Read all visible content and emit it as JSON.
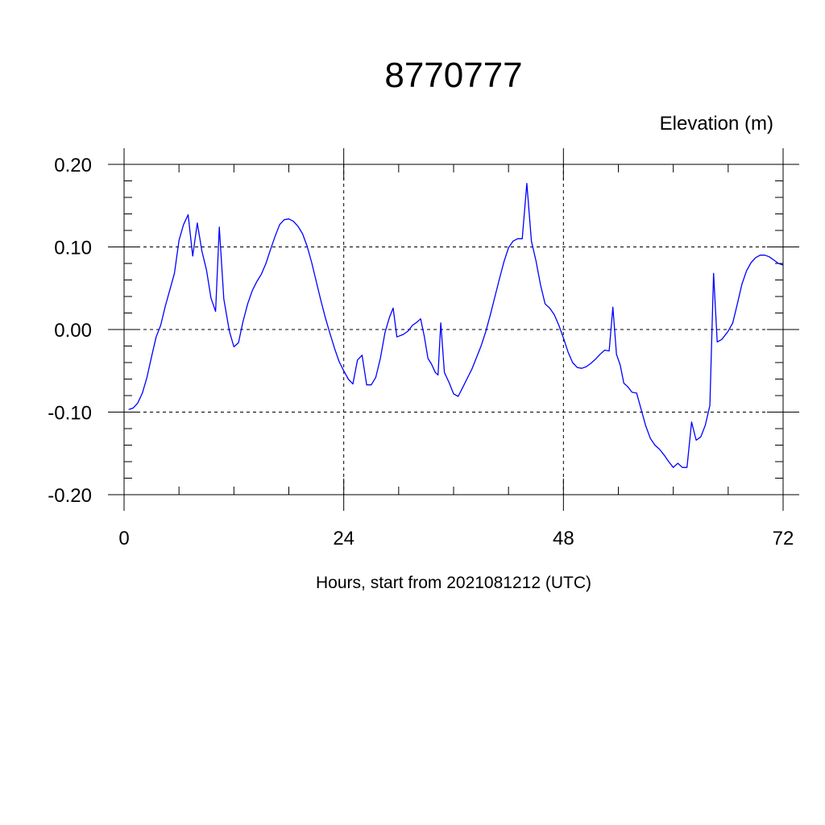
{
  "chart_data": {
    "type": "line",
    "title": "8770777",
    "units_label": "Elevation (m)",
    "xlabel": "Hours, start from 2021081212 (UTC)",
    "ylabel": "",
    "xlim": [
      0,
      72
    ],
    "ylim": [
      -0.2,
      0.2
    ],
    "xticks": [
      0,
      24,
      48,
      72
    ],
    "xtick_labels": [
      "0",
      "24",
      "48",
      "72"
    ],
    "yticks": [
      0.2,
      0.1,
      0.0,
      -0.1,
      -0.2
    ],
    "ytick_labels": [
      "0.20",
      "0.10",
      "0.00",
      "-0.10",
      "-0.20"
    ],
    "grid": true,
    "line_color": "#0000ff",
    "series": [
      {
        "points": [
          [
            0.5,
            -0.097
          ],
          [
            1.0,
            -0.095
          ],
          [
            1.5,
            -0.089
          ],
          [
            2.0,
            -0.077
          ],
          [
            2.5,
            -0.058
          ],
          [
            3.0,
            -0.033
          ],
          [
            3.5,
            -0.009
          ],
          [
            4.0,
            0.005
          ],
          [
            4.5,
            0.028
          ],
          [
            5.0,
            0.048
          ],
          [
            5.5,
            0.068
          ],
          [
            6.0,
            0.108
          ],
          [
            6.5,
            0.127
          ],
          [
            7.0,
            0.139
          ],
          [
            7.5,
            0.089
          ],
          [
            8.0,
            0.129
          ],
          [
            8.5,
            0.095
          ],
          [
            9.0,
            0.072
          ],
          [
            9.5,
            0.038
          ],
          [
            10.0,
            0.022
          ],
          [
            10.4,
            0.124
          ],
          [
            10.9,
            0.037
          ],
          [
            11.5,
            -0.002
          ],
          [
            12.0,
            -0.021
          ],
          [
            12.5,
            -0.016
          ],
          [
            13.0,
            0.01
          ],
          [
            13.5,
            0.031
          ],
          [
            14.0,
            0.047
          ],
          [
            14.5,
            0.058
          ],
          [
            15.0,
            0.067
          ],
          [
            15.5,
            0.08
          ],
          [
            16.0,
            0.097
          ],
          [
            16.5,
            0.113
          ],
          [
            17.0,
            0.127
          ],
          [
            17.5,
            0.133
          ],
          [
            18.0,
            0.134
          ],
          [
            18.5,
            0.131
          ],
          [
            19.0,
            0.125
          ],
          [
            19.5,
            0.116
          ],
          [
            20.0,
            0.101
          ],
          [
            20.5,
            0.081
          ],
          [
            21.0,
            0.058
          ],
          [
            21.5,
            0.035
          ],
          [
            22.0,
            0.014
          ],
          [
            22.5,
            -0.005
          ],
          [
            23.0,
            -0.023
          ],
          [
            23.5,
            -0.039
          ],
          [
            24.0,
            -0.05
          ],
          [
            24.5,
            -0.06
          ],
          [
            25.0,
            -0.066
          ],
          [
            25.5,
            -0.037
          ],
          [
            26.0,
            -0.031
          ],
          [
            26.5,
            -0.067
          ],
          [
            27.0,
            -0.067
          ],
          [
            27.5,
            -0.058
          ],
          [
            28.0,
            -0.035
          ],
          [
            28.5,
            -0.004
          ],
          [
            29.0,
            0.015
          ],
          [
            29.4,
            0.026
          ],
          [
            29.8,
            -0.009
          ],
          [
            30.5,
            -0.006
          ],
          [
            31.0,
            -0.002
          ],
          [
            31.5,
            0.005
          ],
          [
            32.0,
            0.009
          ],
          [
            32.4,
            0.013
          ],
          [
            32.8,
            -0.008
          ],
          [
            33.2,
            -0.035
          ],
          [
            33.6,
            -0.042
          ],
          [
            34.0,
            -0.052
          ],
          [
            34.3,
            -0.055
          ],
          [
            34.6,
            0.008
          ],
          [
            35.0,
            -0.052
          ],
          [
            35.5,
            -0.064
          ],
          [
            36.0,
            -0.078
          ],
          [
            36.5,
            -0.081
          ],
          [
            37.0,
            -0.07
          ],
          [
            37.5,
            -0.059
          ],
          [
            38.0,
            -0.048
          ],
          [
            38.5,
            -0.034
          ],
          [
            39.0,
            -0.02
          ],
          [
            39.5,
            -0.003
          ],
          [
            40.0,
            0.017
          ],
          [
            40.5,
            0.039
          ],
          [
            41.0,
            0.061
          ],
          [
            41.5,
            0.082
          ],
          [
            42.0,
            0.099
          ],
          [
            42.5,
            0.107
          ],
          [
            43.0,
            0.11
          ],
          [
            43.5,
            0.11
          ],
          [
            44.0,
            0.177
          ],
          [
            44.5,
            0.107
          ],
          [
            45.0,
            0.083
          ],
          [
            45.5,
            0.054
          ],
          [
            46.0,
            0.031
          ],
          [
            46.5,
            0.026
          ],
          [
            47.0,
            0.018
          ],
          [
            47.5,
            0.005
          ],
          [
            48.0,
            -0.01
          ],
          [
            48.5,
            -0.027
          ],
          [
            49.0,
            -0.04
          ],
          [
            49.5,
            -0.046
          ],
          [
            50.0,
            -0.047
          ],
          [
            50.5,
            -0.045
          ],
          [
            51.0,
            -0.041
          ],
          [
            51.5,
            -0.036
          ],
          [
            52.0,
            -0.03
          ],
          [
            52.5,
            -0.025
          ],
          [
            53.0,
            -0.026
          ],
          [
            53.4,
            0.027
          ],
          [
            53.8,
            -0.03
          ],
          [
            54.2,
            -0.043
          ],
          [
            54.6,
            -0.065
          ],
          [
            55.0,
            -0.069
          ],
          [
            55.5,
            -0.076
          ],
          [
            56.0,
            -0.077
          ],
          [
            56.5,
            -0.097
          ],
          [
            57.0,
            -0.117
          ],
          [
            57.5,
            -0.132
          ],
          [
            58.0,
            -0.14
          ],
          [
            58.5,
            -0.145
          ],
          [
            59.0,
            -0.152
          ],
          [
            59.5,
            -0.16
          ],
          [
            60.0,
            -0.167
          ],
          [
            60.5,
            -0.162
          ],
          [
            61.0,
            -0.167
          ],
          [
            61.5,
            -0.167
          ],
          [
            62.0,
            -0.112
          ],
          [
            62.5,
            -0.134
          ],
          [
            63.0,
            -0.13
          ],
          [
            63.5,
            -0.116
          ],
          [
            64.0,
            -0.092
          ],
          [
            64.4,
            0.068
          ],
          [
            64.8,
            -0.015
          ],
          [
            65.3,
            -0.012
          ],
          [
            66.0,
            -0.002
          ],
          [
            66.5,
            0.008
          ],
          [
            67.0,
            0.031
          ],
          [
            67.5,
            0.055
          ],
          [
            68.0,
            0.071
          ],
          [
            68.5,
            0.081
          ],
          [
            69.0,
            0.087
          ],
          [
            69.5,
            0.09
          ],
          [
            70.0,
            0.09
          ],
          [
            70.5,
            0.088
          ],
          [
            71.0,
            0.084
          ],
          [
            71.5,
            0.08
          ],
          [
            72.0,
            0.078
          ]
        ]
      }
    ]
  }
}
